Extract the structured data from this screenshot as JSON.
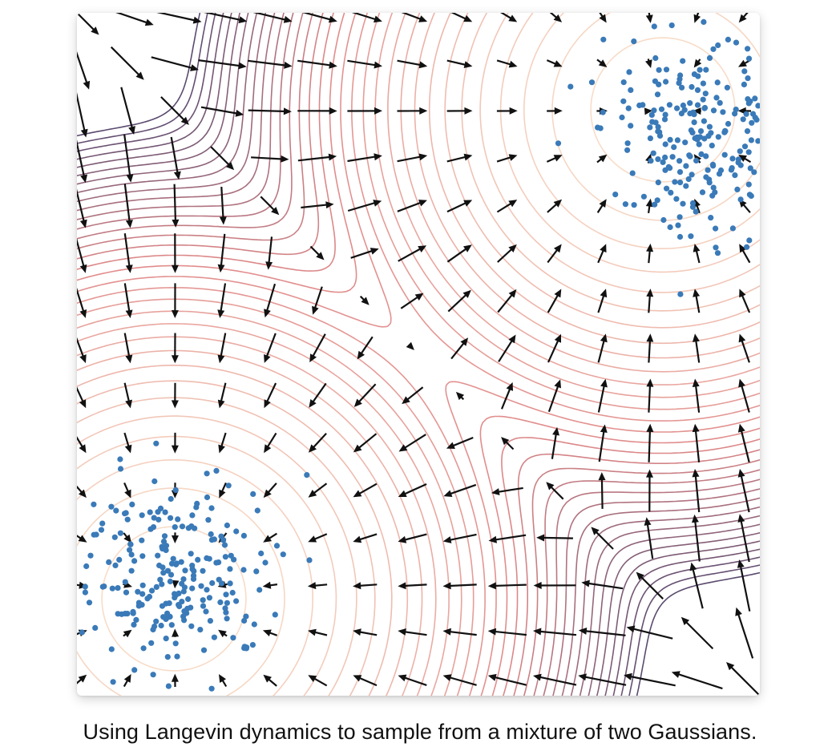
{
  "caption": "Using Langevin dynamics to sample from a mixture of two Gaussians.",
  "plot": {
    "colors": {
      "contour_low": "#f8dcc8",
      "contour_mid": "#e08a8a",
      "contour_high": "#5a4a6e",
      "arrow": "#111111",
      "samples": "#3a7ab8",
      "background": "#ffffff"
    },
    "gaussians": [
      {
        "name": "bottom-left-mode",
        "mean": [
          -1,
          -1
        ]
      },
      {
        "name": "top-right-mode",
        "mean": [
          1,
          1
        ]
      }
    ],
    "elements": [
      "energy-contours",
      "score-vector-field",
      "sample-points"
    ]
  }
}
